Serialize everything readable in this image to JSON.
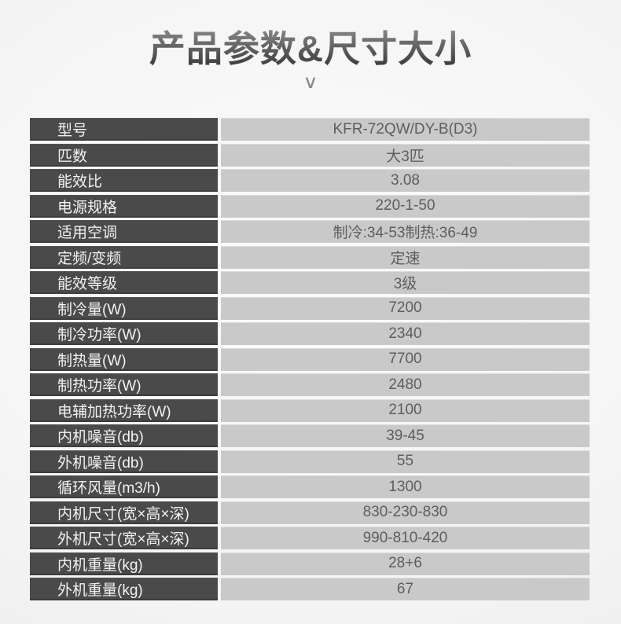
{
  "title": "产品参数&尺寸大小",
  "chevron_glyph": "∨",
  "table": {
    "rows": [
      {
        "label": "型号",
        "value": "KFR-72QW/DY-B(D3)"
      },
      {
        "label": "匹数",
        "value": "大3匹"
      },
      {
        "label": "能效比",
        "value": "3.08"
      },
      {
        "label": "电源规格",
        "value": "220-1-50"
      },
      {
        "label": "适用空调",
        "value": "制冷:34-53制热:36-49"
      },
      {
        "label": "定频/变频",
        "value": "定速"
      },
      {
        "label": "能效等级",
        "value": "3级"
      },
      {
        "label": "制冷量(W)",
        "value": "7200"
      },
      {
        "label": "制冷功率(W)",
        "value": "2340"
      },
      {
        "label": "制热量(W)",
        "value": "7700"
      },
      {
        "label": "制热功率(W)",
        "value": "2480"
      },
      {
        "label": "电辅加热功率(W)",
        "value": "2100"
      },
      {
        "label": "内机噪音(db)",
        "value": "39-45"
      },
      {
        "label": "外机噪音(db)",
        "value": "55"
      },
      {
        "label": "循环风量(m3/h)",
        "value": "1300"
      },
      {
        "label": "内机尺寸(宽×高×深)",
        "value": "830-230-830"
      },
      {
        "label": "外机尺寸(宽×高×深)",
        "value": "990-810-420"
      },
      {
        "label": "内机重量(kg)",
        "value": "28+6"
      },
      {
        "label": "外机重量(kg)",
        "value": "67"
      }
    ]
  },
  "colors": {
    "label_bg": "#4a4a4a",
    "label_text": "#f2f2f2",
    "value_bg": "#c9c9c9",
    "value_text": "#5e5e5e",
    "title_gradient_top": "#8c8c8c",
    "title_gradient_bottom": "#3d3d3d",
    "chevron": "#8a8a8a"
  }
}
